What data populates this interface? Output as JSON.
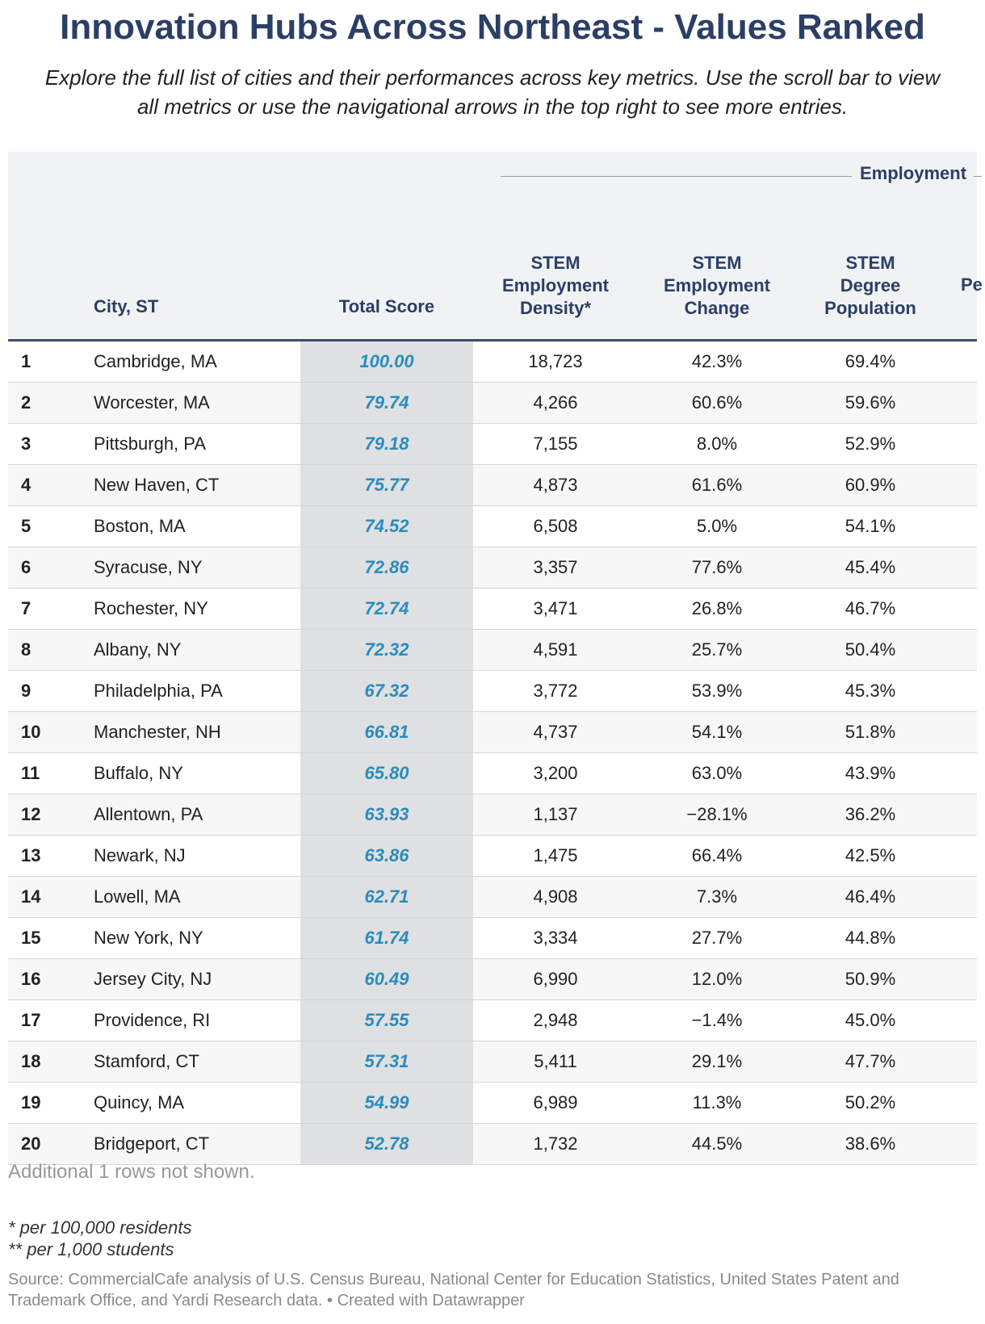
{
  "title": "Innovation Hubs Across Northeast - Values Ranked",
  "subtitle_line1": "Explore the full list of cities and their performances across key metrics. Use the scroll bar to view",
  "subtitle_line2": "all metrics or use the navigational arrows in the top right to see more entries.",
  "chart_data": {
    "type": "table",
    "group_header": "Employment",
    "columns": [
      {
        "lines": [
          "City, ST"
        ]
      },
      {
        "lines": [
          "Total Score"
        ]
      },
      {
        "lines": [
          "STEM",
          "Employment",
          "Density*"
        ]
      },
      {
        "lines": [
          "STEM",
          "Employment",
          "Change"
        ]
      },
      {
        "lines": [
          "STEM",
          "Degree",
          "Population"
        ]
      },
      {
        "lines": [
          "Pe"
        ]
      }
    ],
    "rows": [
      {
        "rank": "1",
        "city": "Cambridge, MA",
        "score": "100.00",
        "density": "18,723",
        "change": "42.3%",
        "degree": "69.4%"
      },
      {
        "rank": "2",
        "city": "Worcester, MA",
        "score": "79.74",
        "density": "4,266",
        "change": "60.6%",
        "degree": "59.6%"
      },
      {
        "rank": "3",
        "city": "Pittsburgh, PA",
        "score": "79.18",
        "density": "7,155",
        "change": "8.0%",
        "degree": "52.9%"
      },
      {
        "rank": "4",
        "city": "New Haven, CT",
        "score": "75.77",
        "density": "4,873",
        "change": "61.6%",
        "degree": "60.9%"
      },
      {
        "rank": "5",
        "city": "Boston, MA",
        "score": "74.52",
        "density": "6,508",
        "change": "5.0%",
        "degree": "54.1%"
      },
      {
        "rank": "6",
        "city": "Syracuse, NY",
        "score": "72.86",
        "density": "3,357",
        "change": "77.6%",
        "degree": "45.4%"
      },
      {
        "rank": "7",
        "city": "Rochester, NY",
        "score": "72.74",
        "density": "3,471",
        "change": "26.8%",
        "degree": "46.7%"
      },
      {
        "rank": "8",
        "city": "Albany, NY",
        "score": "72.32",
        "density": "4,591",
        "change": "25.7%",
        "degree": "50.4%"
      },
      {
        "rank": "9",
        "city": "Philadelphia, PA",
        "score": "67.32",
        "density": "3,772",
        "change": "53.9%",
        "degree": "45.3%"
      },
      {
        "rank": "10",
        "city": "Manchester, NH",
        "score": "66.81",
        "density": "4,737",
        "change": "54.1%",
        "degree": "51.8%"
      },
      {
        "rank": "11",
        "city": "Buffalo, NY",
        "score": "65.80",
        "density": "3,200",
        "change": "63.0%",
        "degree": "43.9%"
      },
      {
        "rank": "12",
        "city": "Allentown, PA",
        "score": "63.93",
        "density": "1,137",
        "change": "−28.1%",
        "degree": "36.2%"
      },
      {
        "rank": "13",
        "city": "Newark, NJ",
        "score": "63.86",
        "density": "1,475",
        "change": "66.4%",
        "degree": "42.5%"
      },
      {
        "rank": "14",
        "city": "Lowell, MA",
        "score": "62.71",
        "density": "4,908",
        "change": "7.3%",
        "degree": "46.4%"
      },
      {
        "rank": "15",
        "city": "New York, NY",
        "score": "61.74",
        "density": "3,334",
        "change": "27.7%",
        "degree": "44.8%"
      },
      {
        "rank": "16",
        "city": "Jersey City, NJ",
        "score": "60.49",
        "density": "6,990",
        "change": "12.0%",
        "degree": "50.9%"
      },
      {
        "rank": "17",
        "city": "Providence, RI",
        "score": "57.55",
        "density": "2,948",
        "change": "−1.4%",
        "degree": "45.0%"
      },
      {
        "rank": "18",
        "city": "Stamford, CT",
        "score": "57.31",
        "density": "5,411",
        "change": "29.1%",
        "degree": "47.7%"
      },
      {
        "rank": "19",
        "city": "Quincy, MA",
        "score": "54.99",
        "density": "6,989",
        "change": "11.3%",
        "degree": "50.2%"
      },
      {
        "rank": "20",
        "city": "Bridgeport, CT",
        "score": "52.78",
        "density": "1,732",
        "change": "44.5%",
        "degree": "38.6%"
      }
    ]
  },
  "rows_note": "Additional 1 rows not shown.",
  "footnote1": "* per 100,000 residents",
  "footnote2": "** per 1,000 students",
  "source_line1": "Source: CommercialCafe analysis of U.S. Census Bureau, National Center for Education Statistics, United States Patent and",
  "source_line2": "Trademark Office, and Yardi Research data. • Created with Datawrapper",
  "colors": {
    "title": "#2b3f66",
    "score": "#2a8cbc",
    "header_bg": "#f1f2f3",
    "score_bg": "#dfe0e2"
  }
}
